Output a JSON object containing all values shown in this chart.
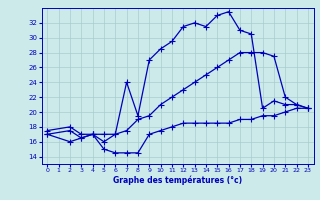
{
  "xlabel": "Graphe des températures (°c)",
  "bg_color": "#cceaea",
  "line_color": "#0000bb",
  "grid_color": "#aacccc",
  "xlim": [
    -0.5,
    23.5
  ],
  "ylim": [
    13,
    34
  ],
  "yticks": [
    14,
    16,
    18,
    20,
    22,
    24,
    26,
    28,
    30,
    32
  ],
  "xticks": [
    0,
    1,
    2,
    3,
    4,
    5,
    6,
    7,
    8,
    9,
    10,
    11,
    12,
    13,
    14,
    15,
    16,
    17,
    18,
    19,
    20,
    21,
    22,
    23
  ],
  "line1_x": [
    0,
    2,
    3,
    4,
    5,
    6,
    7,
    8,
    9,
    10,
    11,
    12,
    13,
    14,
    15,
    16,
    17,
    18,
    19,
    20,
    21,
    22,
    23
  ],
  "line1_y": [
    17.5,
    18.0,
    17.0,
    17.0,
    17.0,
    17.0,
    24.0,
    19.5,
    27.0,
    28.5,
    29.5,
    31.5,
    32.0,
    31.5,
    33.0,
    33.5,
    31.0,
    30.5,
    20.5,
    21.5,
    21.0,
    21.0,
    20.5
  ],
  "line2_x": [
    0,
    2,
    3,
    4,
    5,
    6,
    7,
    8,
    9,
    10,
    11,
    12,
    13,
    14,
    15,
    16,
    17,
    18,
    19,
    20,
    21,
    22,
    23
  ],
  "line2_y": [
    17.0,
    17.5,
    16.5,
    17.0,
    16.0,
    17.0,
    17.5,
    19.0,
    19.5,
    21.0,
    22.0,
    23.0,
    24.0,
    25.0,
    26.0,
    27.0,
    28.0,
    28.0,
    28.0,
    27.5,
    22.0,
    21.0,
    20.5
  ],
  "line3_x": [
    0,
    2,
    3,
    4,
    5,
    6,
    7,
    8,
    9,
    10,
    11,
    12,
    13,
    14,
    15,
    16,
    17,
    18,
    19,
    20,
    21,
    22,
    23
  ],
  "line3_y": [
    17.0,
    16.0,
    16.5,
    17.0,
    15.0,
    14.5,
    14.5,
    14.5,
    17.0,
    17.5,
    18.0,
    18.5,
    18.5,
    18.5,
    18.5,
    18.5,
    19.0,
    19.0,
    19.5,
    19.5,
    20.0,
    20.5,
    20.5
  ]
}
